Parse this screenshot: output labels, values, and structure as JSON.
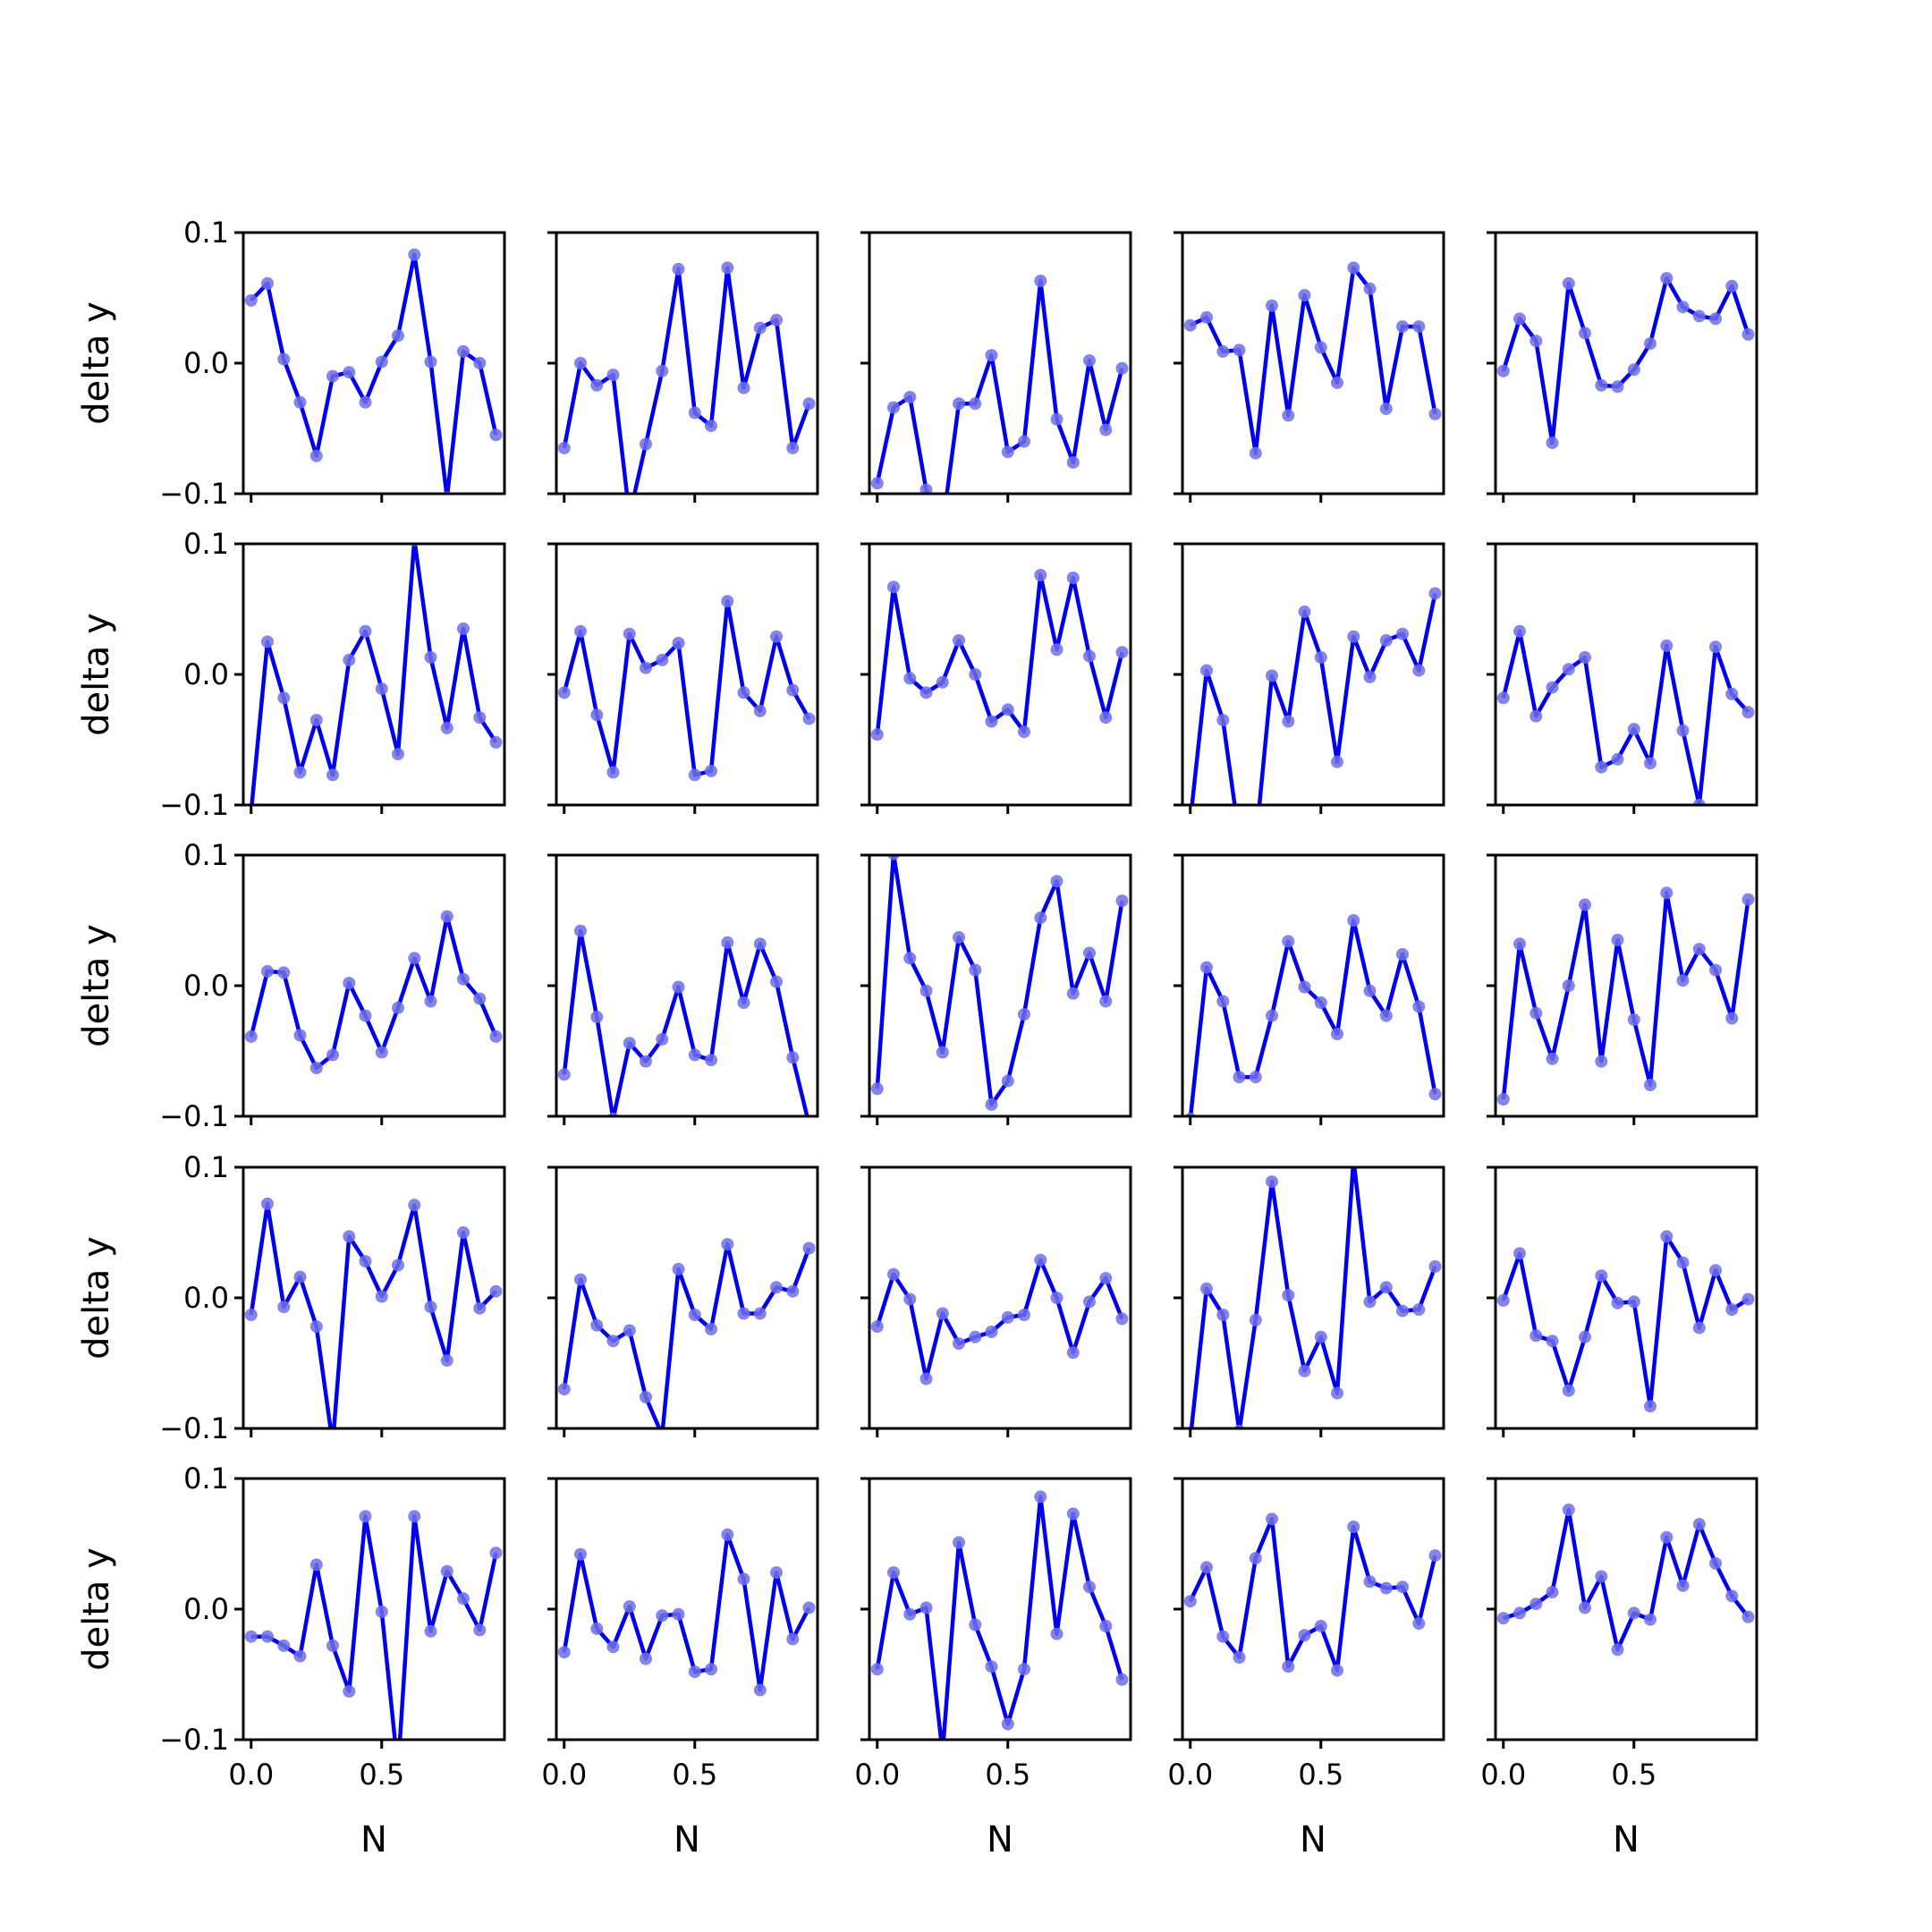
{
  "chart_data": {
    "type": "line",
    "rows": 5,
    "cols": 5,
    "xlabel": "N",
    "ylabel": "delta y",
    "xlim": [
      -0.03,
      0.97
    ],
    "ylim": [
      -0.1,
      0.1
    ],
    "xticks": [
      {
        "value": 0.0,
        "label": "0.0"
      },
      {
        "value": 0.5,
        "label": "0.5"
      }
    ],
    "yticks": [
      {
        "value": -0.1,
        "label": "−0.1"
      },
      {
        "value": 0.0,
        "label": "0.0"
      },
      {
        "value": 0.1,
        "label": "0.1"
      }
    ],
    "line_color": "#0000ee",
    "marker_color": "#6f6fe8",
    "x": [
      0.0,
      0.0625,
      0.125,
      0.1875,
      0.25,
      0.3125,
      0.375,
      0.4375,
      0.5,
      0.5625,
      0.625,
      0.6875,
      0.75,
      0.8125,
      0.875,
      0.9375
    ],
    "panels": [
      {
        "row": 0,
        "col": 0,
        "y": [
          0.048,
          0.061,
          0.003,
          -0.03,
          -0.071,
          -0.01,
          -0.007,
          -0.03,
          0.001,
          0.021,
          0.083,
          0.001,
          -0.103,
          0.009,
          0.0,
          -0.055
        ]
      },
      {
        "row": 0,
        "col": 1,
        "y": [
          -0.065,
          0.0,
          -0.017,
          -0.009,
          -0.117,
          -0.062,
          -0.006,
          0.072,
          -0.038,
          -0.048,
          0.073,
          -0.019,
          0.027,
          0.033,
          -0.065,
          -0.031
        ]
      },
      {
        "row": 0,
        "col": 2,
        "y": [
          -0.092,
          -0.034,
          -0.026,
          -0.097,
          -0.125,
          -0.031,
          -0.031,
          0.006,
          -0.068,
          -0.06,
          0.063,
          -0.043,
          -0.076,
          0.002,
          -0.051,
          -0.004
        ]
      },
      {
        "row": 0,
        "col": 3,
        "y": [
          0.029,
          0.035,
          0.009,
          0.01,
          -0.069,
          0.044,
          -0.04,
          0.052,
          0.012,
          -0.015,
          0.073,
          0.057,
          -0.035,
          0.028,
          0.028,
          -0.039
        ]
      },
      {
        "row": 0,
        "col": 4,
        "y": [
          -0.006,
          0.034,
          0.017,
          -0.061,
          0.061,
          0.023,
          -0.017,
          -0.018,
          -0.005,
          0.015,
          0.065,
          0.043,
          0.036,
          0.034,
          0.059,
          0.022
        ]
      },
      {
        "row": 1,
        "col": 0,
        "y": [
          -0.105,
          0.025,
          -0.018,
          -0.075,
          -0.035,
          -0.077,
          0.011,
          0.033,
          -0.011,
          -0.061,
          0.103,
          0.013,
          -0.041,
          0.035,
          -0.033,
          -0.052
        ]
      },
      {
        "row": 1,
        "col": 1,
        "y": [
          -0.014,
          0.033,
          -0.031,
          -0.075,
          0.031,
          0.005,
          0.011,
          0.024,
          -0.077,
          -0.074,
          0.056,
          -0.014,
          -0.028,
          0.029,
          -0.012,
          -0.034
        ]
      },
      {
        "row": 1,
        "col": 2,
        "y": [
          -0.046,
          0.067,
          -0.003,
          -0.014,
          -0.006,
          0.026,
          0.0,
          -0.036,
          -0.027,
          -0.044,
          0.076,
          0.019,
          0.074,
          0.014,
          -0.033,
          0.017
        ]
      },
      {
        "row": 1,
        "col": 3,
        "y": [
          -0.112,
          0.003,
          -0.035,
          -0.125,
          -0.13,
          -0.001,
          -0.036,
          0.048,
          0.013,
          -0.067,
          0.029,
          -0.002,
          0.026,
          0.031,
          0.003,
          0.062
        ]
      },
      {
        "row": 1,
        "col": 4,
        "y": [
          -0.018,
          0.033,
          -0.032,
          -0.01,
          0.004,
          0.013,
          -0.071,
          -0.065,
          -0.042,
          -0.068,
          0.022,
          -0.043,
          -0.1,
          0.021,
          -0.015,
          -0.029
        ]
      },
      {
        "row": 2,
        "col": 0,
        "y": [
          -0.039,
          0.011,
          0.01,
          -0.038,
          -0.063,
          -0.053,
          0.002,
          -0.023,
          -0.051,
          -0.017,
          0.021,
          -0.012,
          0.053,
          0.005,
          -0.01,
          -0.039
        ]
      },
      {
        "row": 2,
        "col": 1,
        "y": [
          -0.068,
          0.042,
          -0.024,
          -0.102,
          -0.044,
          -0.058,
          -0.041,
          -0.001,
          -0.053,
          -0.057,
          0.033,
          -0.013,
          0.032,
          0.003,
          -0.055,
          -0.106
        ]
      },
      {
        "row": 2,
        "col": 2,
        "y": [
          -0.079,
          0.101,
          0.021,
          -0.004,
          -0.051,
          0.037,
          0.012,
          -0.091,
          -0.073,
          -0.022,
          0.052,
          0.08,
          -0.006,
          0.025,
          -0.012,
          0.065
        ]
      },
      {
        "row": 2,
        "col": 3,
        "y": [
          -0.102,
          0.014,
          -0.012,
          -0.07,
          -0.07,
          -0.023,
          0.034,
          -0.001,
          -0.013,
          -0.037,
          0.05,
          -0.004,
          -0.023,
          0.024,
          -0.016,
          -0.083
        ]
      },
      {
        "row": 2,
        "col": 4,
        "y": [
          -0.087,
          0.032,
          -0.021,
          -0.056,
          0.0,
          0.062,
          -0.058,
          0.035,
          -0.026,
          -0.076,
          0.071,
          0.004,
          0.028,
          0.012,
          -0.025,
          0.066
        ]
      },
      {
        "row": 3,
        "col": 0,
        "y": [
          -0.013,
          0.072,
          -0.007,
          0.016,
          -0.022,
          -0.112,
          0.047,
          0.028,
          0.001,
          0.025,
          0.071,
          -0.007,
          -0.048,
          0.05,
          -0.008,
          0.005
        ]
      },
      {
        "row": 3,
        "col": 1,
        "y": [
          -0.07,
          0.014,
          -0.021,
          -0.033,
          -0.025,
          -0.076,
          -0.105,
          0.022,
          -0.013,
          -0.024,
          0.041,
          -0.012,
          -0.012,
          0.008,
          0.005,
          0.038
        ]
      },
      {
        "row": 3,
        "col": 2,
        "y": [
          -0.022,
          0.018,
          -0.001,
          -0.062,
          -0.012,
          -0.035,
          -0.03,
          -0.026,
          -0.015,
          -0.013,
          0.029,
          0.0,
          -0.042,
          -0.003,
          0.015,
          -0.016
        ]
      },
      {
        "row": 3,
        "col": 3,
        "y": [
          -0.108,
          0.007,
          -0.013,
          -0.102,
          -0.017,
          0.089,
          0.002,
          -0.056,
          -0.03,
          -0.073,
          0.106,
          -0.003,
          0.008,
          -0.01,
          -0.009,
          0.024
        ]
      },
      {
        "row": 3,
        "col": 4,
        "y": [
          -0.002,
          0.034,
          -0.029,
          -0.033,
          -0.071,
          -0.03,
          0.017,
          -0.004,
          -0.003,
          -0.083,
          0.047,
          0.027,
          -0.023,
          0.021,
          -0.009,
          -0.001
        ]
      },
      {
        "row": 4,
        "col": 0,
        "y": [
          -0.021,
          -0.021,
          -0.028,
          -0.036,
          0.034,
          -0.028,
          -0.063,
          0.071,
          -0.002,
          -0.123,
          0.071,
          -0.017,
          0.029,
          0.008,
          -0.016,
          0.043
        ]
      },
      {
        "row": 4,
        "col": 1,
        "y": [
          -0.033,
          0.042,
          -0.015,
          -0.029,
          0.002,
          -0.038,
          -0.005,
          -0.004,
          -0.048,
          -0.046,
          0.057,
          0.023,
          -0.062,
          0.028,
          -0.023,
          0.001
        ]
      },
      {
        "row": 4,
        "col": 2,
        "y": [
          -0.046,
          0.028,
          -0.004,
          0.001,
          -0.11,
          0.051,
          -0.012,
          -0.044,
          -0.088,
          -0.046,
          0.086,
          -0.019,
          0.073,
          0.017,
          -0.013,
          -0.054
        ]
      },
      {
        "row": 4,
        "col": 3,
        "y": [
          0.006,
          0.032,
          -0.021,
          -0.037,
          0.039,
          0.069,
          -0.044,
          -0.02,
          -0.013,
          -0.047,
          0.063,
          0.021,
          0.016,
          0.017,
          -0.011,
          0.041
        ]
      },
      {
        "row": 4,
        "col": 4,
        "y": [
          -0.007,
          -0.003,
          0.004,
          0.013,
          0.076,
          0.001,
          0.025,
          -0.031,
          -0.003,
          -0.008,
          0.055,
          0.018,
          0.065,
          0.035,
          0.01,
          -0.006
        ]
      }
    ]
  }
}
